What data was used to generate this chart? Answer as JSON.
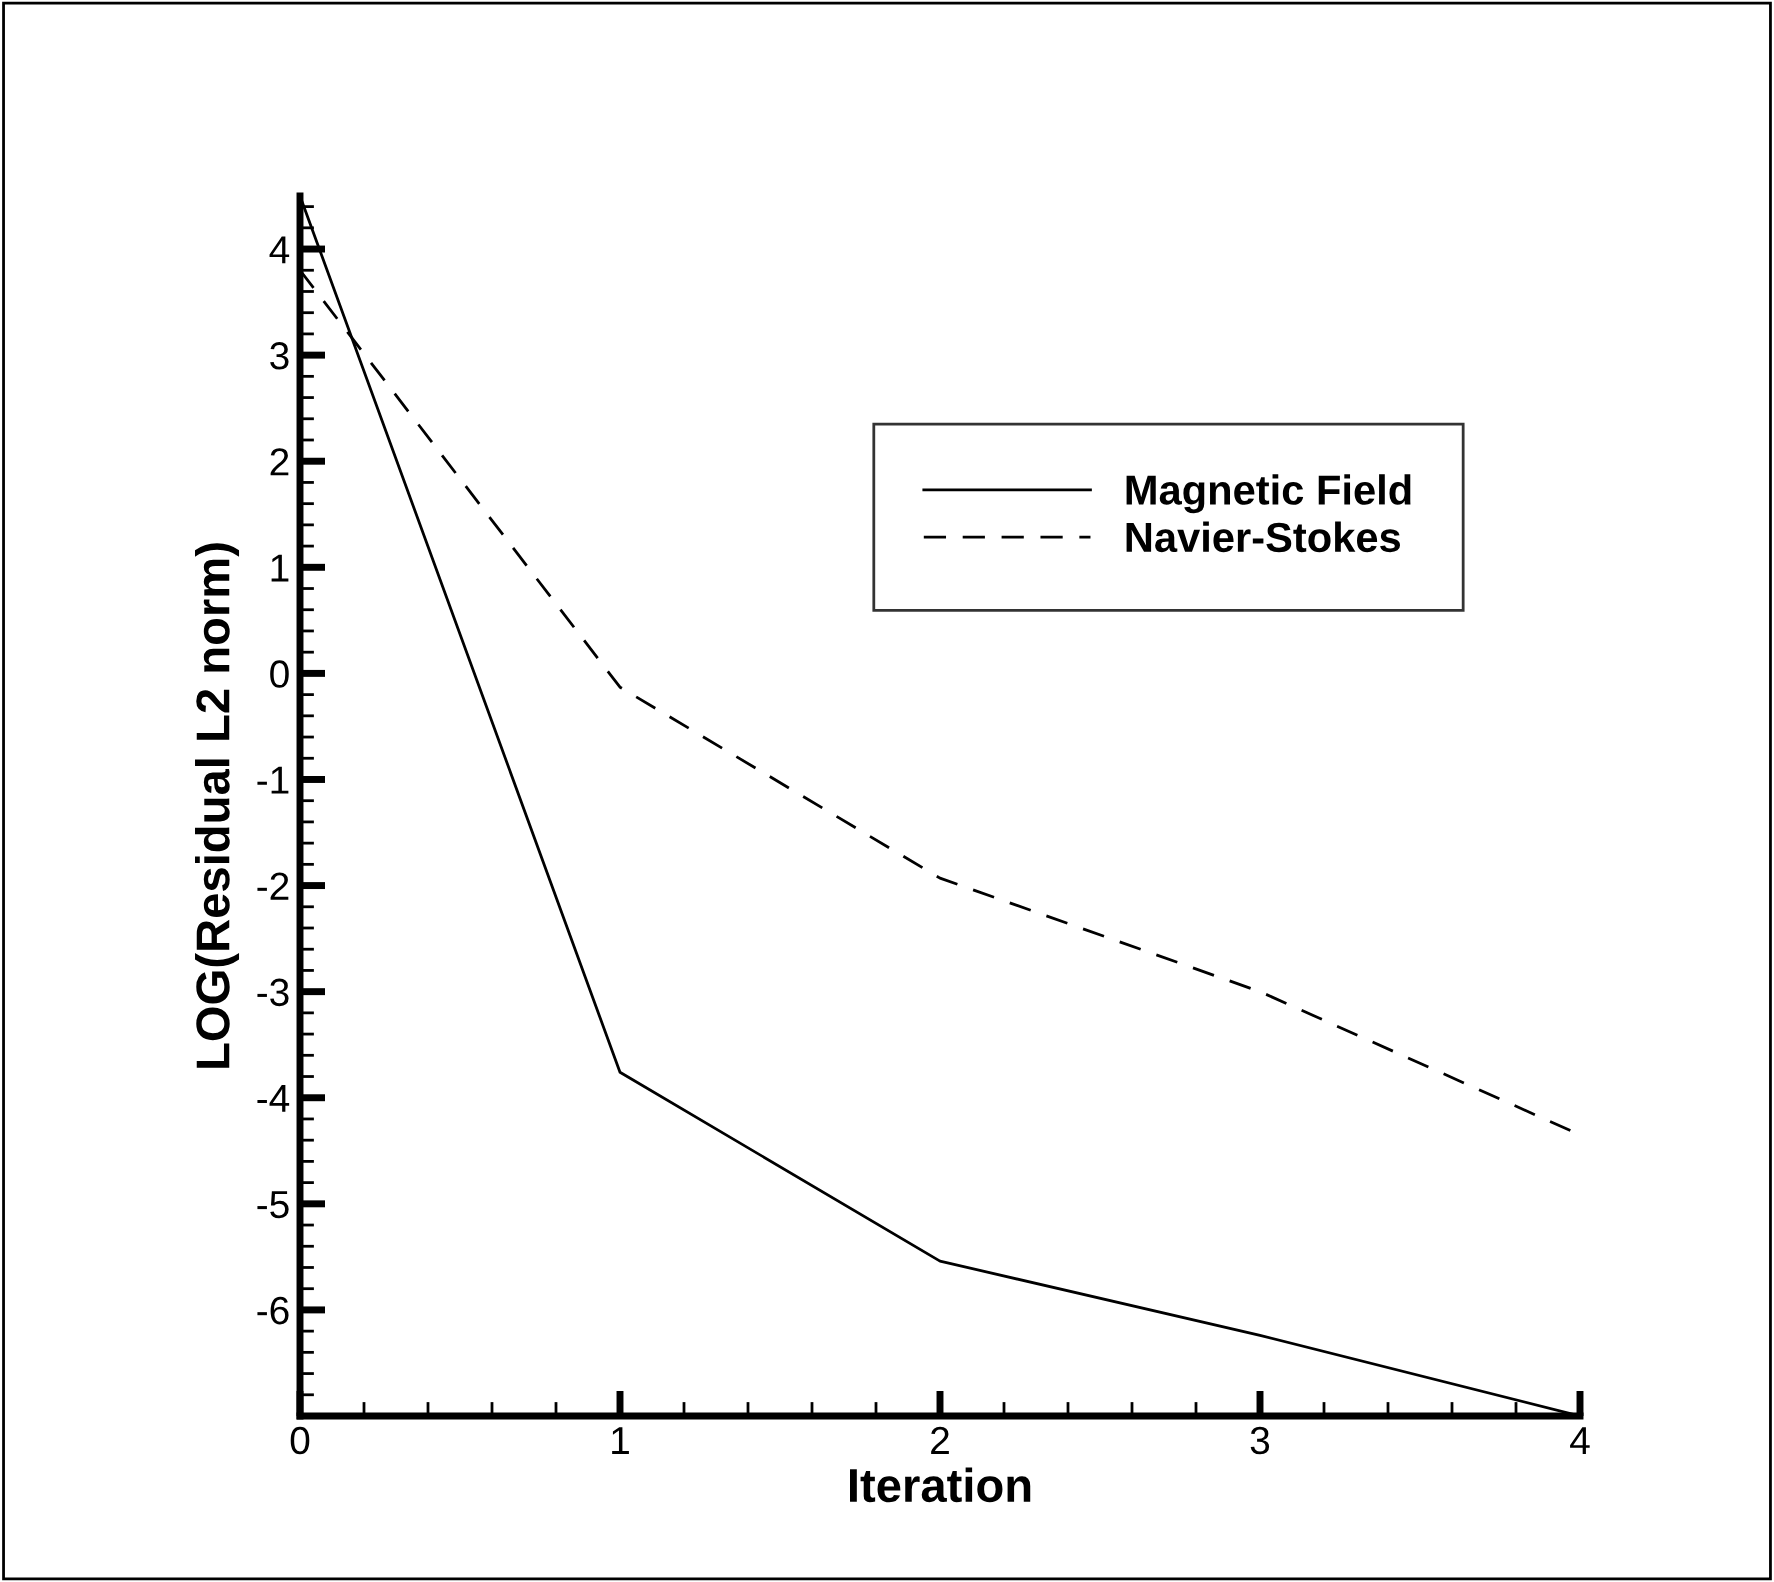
{
  "chart_data": {
    "type": "line",
    "xlabel": "Iteration",
    "ylabel": "LOG(Residual L2 norm)",
    "x": [
      0,
      1,
      2,
      3,
      4
    ],
    "series": [
      {
        "name": "Magnetic Field",
        "color": "#000000",
        "line_style": "solid",
        "values": [
          4.5,
          -3.76,
          -5.54,
          -6.24,
          -7.0
        ]
      },
      {
        "name": "Navier-Stokes",
        "color": "#000000",
        "line_style": "dashed",
        "values": [
          3.8,
          -0.13,
          -1.93,
          -3.0,
          -4.35
        ]
      }
    ],
    "xlim": [
      0,
      4
    ],
    "xticks": [
      0,
      1,
      2,
      3,
      4
    ],
    "ylim": [
      -7,
      4.5
    ],
    "yticks": [
      -6,
      -5,
      -4,
      -3,
      -2,
      -1,
      0,
      1,
      2,
      3,
      4
    ],
    "grid": false,
    "legend": "top right",
    "marker": "none"
  }
}
